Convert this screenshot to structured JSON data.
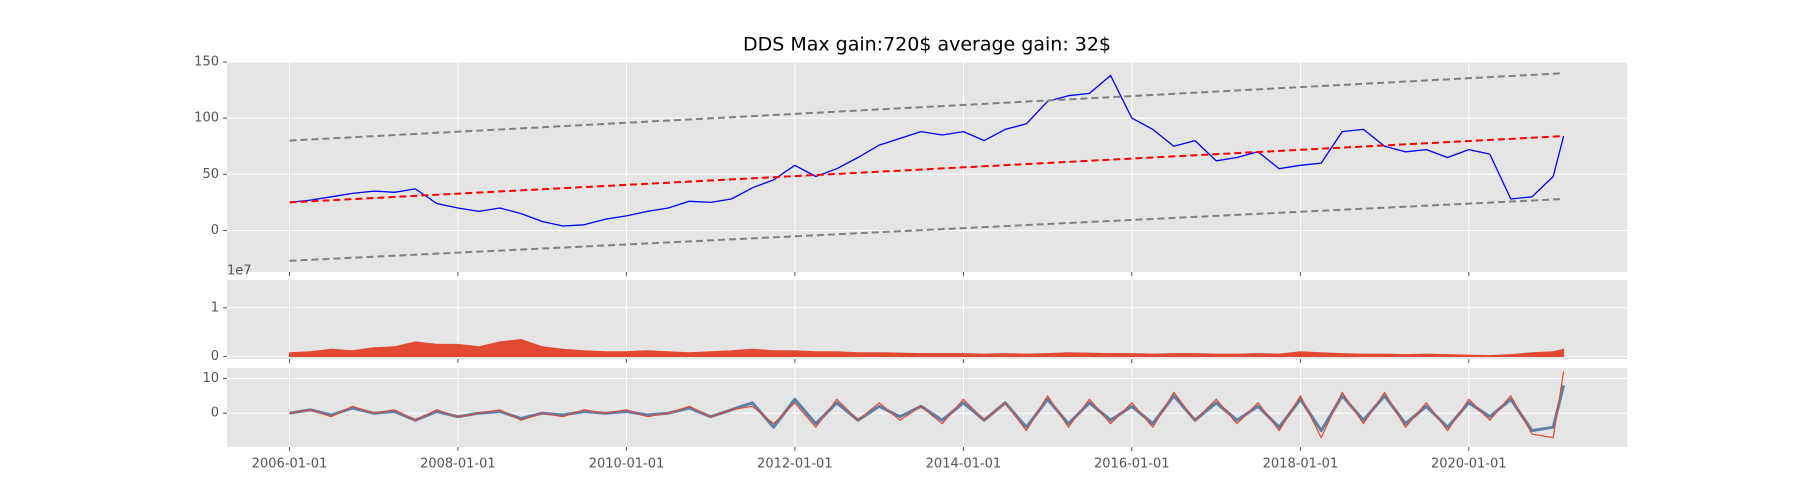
{
  "chart_data": [
    {
      "type": "line",
      "title": "DDS Max gain:720$  average gain: 32$",
      "xlim": [
        "2005-04-05",
        "2021-11-17"
      ],
      "ylim": [
        -37,
        150
      ],
      "yticks": [
        0,
        50,
        100,
        150
      ],
      "xticks": [
        "2006-01-01",
        "2008-01-01",
        "2010-01-01",
        "2012-01-01",
        "2014-01-01",
        "2016-01-01",
        "2018-01-01",
        "2020-01-01"
      ],
      "show_xtick_labels": false,
      "grid": true,
      "series": [
        {
          "color": "#0000ff",
          "width": 1.3,
          "style": "solid",
          "x": [
            "2006-01-01",
            "2006-04-01",
            "2006-07-01",
            "2006-10-01",
            "2007-01-01",
            "2007-04-01",
            "2007-07-01",
            "2007-10-01",
            "2008-01-01",
            "2008-04-01",
            "2008-07-01",
            "2008-10-01",
            "2009-01-01",
            "2009-04-01",
            "2009-07-01",
            "2009-10-01",
            "2010-01-01",
            "2010-04-01",
            "2010-07-01",
            "2010-10-01",
            "2011-01-01",
            "2011-04-01",
            "2011-07-01",
            "2011-10-01",
            "2012-01-01",
            "2012-04-01",
            "2012-07-01",
            "2012-10-01",
            "2013-01-01",
            "2013-04-01",
            "2013-07-01",
            "2013-10-01",
            "2014-01-01",
            "2014-04-01",
            "2014-07-01",
            "2014-10-01",
            "2015-01-01",
            "2015-04-01",
            "2015-07-01",
            "2015-10-01",
            "2016-01-01",
            "2016-04-01",
            "2016-07-01",
            "2016-10-01",
            "2017-01-01",
            "2017-04-01",
            "2017-07-01",
            "2017-10-01",
            "2018-01-01",
            "2018-04-01",
            "2018-07-01",
            "2018-10-01",
            "2019-01-01",
            "2019-04-01",
            "2019-07-01",
            "2019-10-01",
            "2020-01-01",
            "2020-04-01",
            "2020-07-01",
            "2020-10-01",
            "2021-01-01",
            "2021-02-15"
          ],
          "values": [
            25,
            27,
            30,
            33,
            35,
            34,
            37,
            24,
            20,
            17,
            20,
            15,
            8,
            4,
            5,
            10,
            13,
            17,
            20,
            26,
            25,
            28,
            38,
            45,
            58,
            48,
            55,
            65,
            76,
            82,
            88,
            85,
            88,
            80,
            90,
            95,
            115,
            120,
            122,
            138,
            100,
            90,
            75,
            80,
            62,
            65,
            70,
            55,
            58,
            60,
            88,
            90,
            75,
            70,
            72,
            65,
            72,
            68,
            28,
            30,
            48,
            84
          ]
        },
        {
          "color": "#ff0000",
          "width": 2,
          "style": "dashed",
          "x": [
            "2006-01-01",
            "2021-02-15"
          ],
          "values": [
            25,
            84
          ]
        },
        {
          "color": "#808080",
          "width": 2,
          "style": "dashed",
          "x": [
            "2006-01-01",
            "2021-02-15"
          ],
          "values": [
            80,
            140
          ]
        },
        {
          "color": "#808080",
          "width": 2,
          "style": "dashed",
          "x": [
            "2006-01-01",
            "2021-02-15"
          ],
          "values": [
            -27,
            28
          ]
        }
      ]
    },
    {
      "type": "area",
      "offset_label": "1e7",
      "xlim": [
        "2005-04-05",
        "2021-11-17"
      ],
      "ylim": [
        -0.05,
        1.57
      ],
      "yticks": [
        0,
        1
      ],
      "xticks": [
        "2006-01-01",
        "2008-01-01",
        "2010-01-01",
        "2012-01-01",
        "2014-01-01",
        "2016-01-01",
        "2018-01-01",
        "2020-01-01"
      ],
      "show_xtick_labels": false,
      "grid": true,
      "series": [
        {
          "color": "#e24a33",
          "width": 1,
          "style": "solid",
          "x": [
            "2006-01-01",
            "2006-04-01",
            "2006-07-01",
            "2006-10-01",
            "2007-01-01",
            "2007-04-01",
            "2007-07-01",
            "2007-10-01",
            "2008-01-01",
            "2008-04-01",
            "2008-07-01",
            "2008-10-01",
            "2009-01-01",
            "2009-04-01",
            "2009-07-01",
            "2009-10-01",
            "2010-01-01",
            "2010-04-01",
            "2010-07-01",
            "2010-10-01",
            "2011-01-01",
            "2011-04-01",
            "2011-07-01",
            "2011-10-01",
            "2012-01-01",
            "2012-04-01",
            "2012-07-01",
            "2012-10-01",
            "2013-01-01",
            "2013-04-01",
            "2013-07-01",
            "2013-10-01",
            "2014-01-01",
            "2014-04-01",
            "2014-07-01",
            "2014-10-01",
            "2015-01-01",
            "2015-04-01",
            "2015-07-01",
            "2015-10-01",
            "2016-01-01",
            "2016-04-01",
            "2016-07-01",
            "2016-10-01",
            "2017-01-01",
            "2017-04-01",
            "2017-07-01",
            "2017-10-01",
            "2018-01-01",
            "2018-04-01",
            "2018-07-01",
            "2018-10-01",
            "2019-01-01",
            "2019-04-01",
            "2019-07-01",
            "2019-10-01",
            "2020-01-01",
            "2020-04-01",
            "2020-07-01",
            "2020-10-01",
            "2021-01-01",
            "2021-02-15"
          ],
          "values": [
            0.08,
            0.1,
            0.15,
            0.12,
            0.18,
            0.2,
            0.3,
            0.25,
            0.25,
            0.2,
            0.3,
            0.35,
            0.2,
            0.15,
            0.12,
            0.1,
            0.1,
            0.12,
            0.1,
            0.08,
            0.1,
            0.12,
            0.15,
            0.12,
            0.12,
            0.1,
            0.1,
            0.08,
            0.08,
            0.07,
            0.06,
            0.06,
            0.06,
            0.05,
            0.06,
            0.05,
            0.06,
            0.08,
            0.07,
            0.06,
            0.06,
            0.05,
            0.06,
            0.06,
            0.05,
            0.05,
            0.06,
            0.05,
            0.1,
            0.08,
            0.06,
            0.05,
            0.05,
            0.04,
            0.05,
            0.04,
            0.03,
            0.02,
            0.04,
            0.08,
            0.1,
            0.15
          ]
        }
      ]
    },
    {
      "type": "line",
      "xlim": [
        "2005-04-05",
        "2021-11-17"
      ],
      "ylim": [
        -9.7,
        13
      ],
      "yticks": [
        0,
        10
      ],
      "xticks": [
        "2006-01-01",
        "2008-01-01",
        "2010-01-01",
        "2012-01-01",
        "2014-01-01",
        "2016-01-01",
        "2018-01-01",
        "2020-01-01"
      ],
      "show_xtick_labels": true,
      "grid": true,
      "series": [
        {
          "color": "#5a7fa8",
          "width": 3,
          "style": "solid",
          "x": [
            "2006-01-01",
            "2006-04-01",
            "2006-07-01",
            "2006-10-01",
            "2007-01-01",
            "2007-04-01",
            "2007-07-01",
            "2007-10-01",
            "2008-01-01",
            "2008-04-01",
            "2008-07-01",
            "2008-10-01",
            "2009-01-01",
            "2009-04-01",
            "2009-07-01",
            "2009-10-01",
            "2010-01-01",
            "2010-04-01",
            "2010-07-01",
            "2010-10-01",
            "2011-01-01",
            "2011-04-01",
            "2011-07-01",
            "2011-10-01",
            "2012-01-01",
            "2012-04-01",
            "2012-07-01",
            "2012-10-01",
            "2013-01-01",
            "2013-04-01",
            "2013-07-01",
            "2013-10-01",
            "2014-01-01",
            "2014-04-01",
            "2014-07-01",
            "2014-10-01",
            "2015-01-01",
            "2015-04-01",
            "2015-07-01",
            "2015-10-01",
            "2016-01-01",
            "2016-04-01",
            "2016-07-01",
            "2016-10-01",
            "2017-01-01",
            "2017-04-01",
            "2017-07-01",
            "2017-10-01",
            "2018-01-01",
            "2018-04-01",
            "2018-07-01",
            "2018-10-01",
            "2019-01-01",
            "2019-04-01",
            "2019-07-01",
            "2019-10-01",
            "2020-01-01",
            "2020-04-01",
            "2020-07-01",
            "2020-10-01",
            "2021-01-01",
            "2021-02-15"
          ],
          "values": [
            0,
            1,
            -0.5,
            1.5,
            0,
            0.5,
            -2,
            0.5,
            -1,
            0,
            0.5,
            -1.5,
            0,
            -0.5,
            0.5,
            0,
            0.5,
            -0.5,
            0,
            1.5,
            -1,
            1,
            3,
            -4,
            4,
            -3,
            3,
            -2,
            2,
            -1,
            2,
            -2,
            3,
            -2,
            3,
            -4,
            4,
            -3,
            3,
            -2,
            2,
            -3,
            5,
            -2,
            3,
            -2,
            2,
            -4,
            4,
            -5,
            5,
            -2,
            5,
            -3,
            2,
            -4,
            3,
            -1,
            4,
            -5,
            -4,
            8
          ]
        },
        {
          "color": "#e24a33",
          "width": 1.2,
          "style": "solid",
          "x": [
            "2006-01-01",
            "2006-04-01",
            "2006-07-01",
            "2006-10-01",
            "2007-01-01",
            "2007-04-01",
            "2007-07-01",
            "2007-10-01",
            "2008-01-01",
            "2008-04-01",
            "2008-07-01",
            "2008-10-01",
            "2009-01-01",
            "2009-04-01",
            "2009-07-01",
            "2009-10-01",
            "2010-01-01",
            "2010-04-01",
            "2010-07-01",
            "2010-10-01",
            "2011-01-01",
            "2011-04-01",
            "2011-07-01",
            "2011-10-01",
            "2012-01-01",
            "2012-04-01",
            "2012-07-01",
            "2012-10-01",
            "2013-01-01",
            "2013-04-01",
            "2013-07-01",
            "2013-10-01",
            "2014-01-01",
            "2014-04-01",
            "2014-07-01",
            "2014-10-01",
            "2015-01-01",
            "2015-04-01",
            "2015-07-01",
            "2015-10-01",
            "2016-01-01",
            "2016-04-01",
            "2016-07-01",
            "2016-10-01",
            "2017-01-01",
            "2017-04-01",
            "2017-07-01",
            "2017-10-01",
            "2018-01-01",
            "2018-04-01",
            "2018-07-01",
            "2018-10-01",
            "2019-01-01",
            "2019-04-01",
            "2019-07-01",
            "2019-10-01",
            "2020-01-01",
            "2020-04-01",
            "2020-07-01",
            "2020-10-01",
            "2021-01-01",
            "2021-02-15"
          ],
          "values": [
            0,
            1,
            -1,
            2,
            0,
            1,
            -2,
            1,
            -1,
            0,
            1,
            -2,
            0,
            -1,
            1,
            0,
            1,
            -1,
            0,
            2,
            -1,
            1,
            2,
            -3,
            3,
            -4,
            4,
            -2,
            3,
            -2,
            2,
            -3,
            4,
            -2,
            3,
            -5,
            5,
            -4,
            4,
            -3,
            3,
            -4,
            6,
            -2,
            4,
            -3,
            3,
            -5,
            5,
            -7,
            6,
            -3,
            6,
            -4,
            3,
            -5,
            4,
            -2,
            5,
            -6,
            -7,
            12
          ]
        }
      ]
    }
  ]
}
